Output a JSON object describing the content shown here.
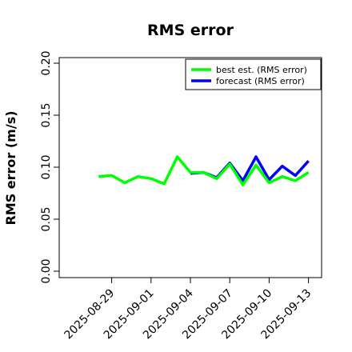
{
  "chart_data": {
    "type": "line",
    "title": "RMS error",
    "xlabel": "",
    "ylabel": "RMS error (m/s)",
    "ylim": [
      0,
      0.21
    ],
    "yticks": [
      "0.00",
      "0.05",
      "0.10",
      "0.15",
      "0.20"
    ],
    "ytick_values": [
      0,
      0.05,
      0.1,
      0.15,
      0.2
    ],
    "xlim": [
      "2025-08-25",
      "2025-09-14"
    ],
    "xticks": [
      "2025-08-29",
      "2025-09-01",
      "2025-09-04",
      "2025-09-07",
      "2025-09-10",
      "2025-09-13"
    ],
    "highlighted_xtick": "2025-09-04",
    "highlight_color": "#2e8b2e",
    "grid": false,
    "legend_position": "top-right",
    "series": [
      {
        "name": "forecast (RMS error)",
        "color": "#0000ff",
        "x": [
          "2025-09-04",
          "2025-09-05",
          "2025-09-06",
          "2025-09-07",
          "2025-09-08",
          "2025-09-09",
          "2025-09-10",
          "2025-09-11",
          "2025-09-12",
          "2025-09-13"
        ],
        "values": [
          0.094,
          0.095,
          0.09,
          0.104,
          0.087,
          0.11,
          0.088,
          0.101,
          0.092,
          0.106
        ]
      },
      {
        "name": "best est. (RMS error)",
        "color": "#00ff00",
        "x": [
          "2025-08-28",
          "2025-08-29",
          "2025-08-30",
          "2025-08-31",
          "2025-09-01",
          "2025-09-02",
          "2025-09-03",
          "2025-09-04",
          "2025-09-05",
          "2025-09-06",
          "2025-09-07",
          "2025-09-08",
          "2025-09-09",
          "2025-09-10",
          "2025-09-11",
          "2025-09-12",
          "2025-09-13"
        ],
        "values": [
          0.091,
          0.092,
          0.085,
          0.091,
          0.089,
          0.084,
          0.11,
          0.095,
          0.095,
          0.089,
          0.103,
          0.083,
          0.102,
          0.085,
          0.091,
          0.087,
          0.095
        ]
      }
    ],
    "legend": [
      {
        "label": "best est. (RMS error)",
        "color": "#00ff00"
      },
      {
        "label": "forecast (RMS error)",
        "color": "#0000ff"
      }
    ]
  }
}
